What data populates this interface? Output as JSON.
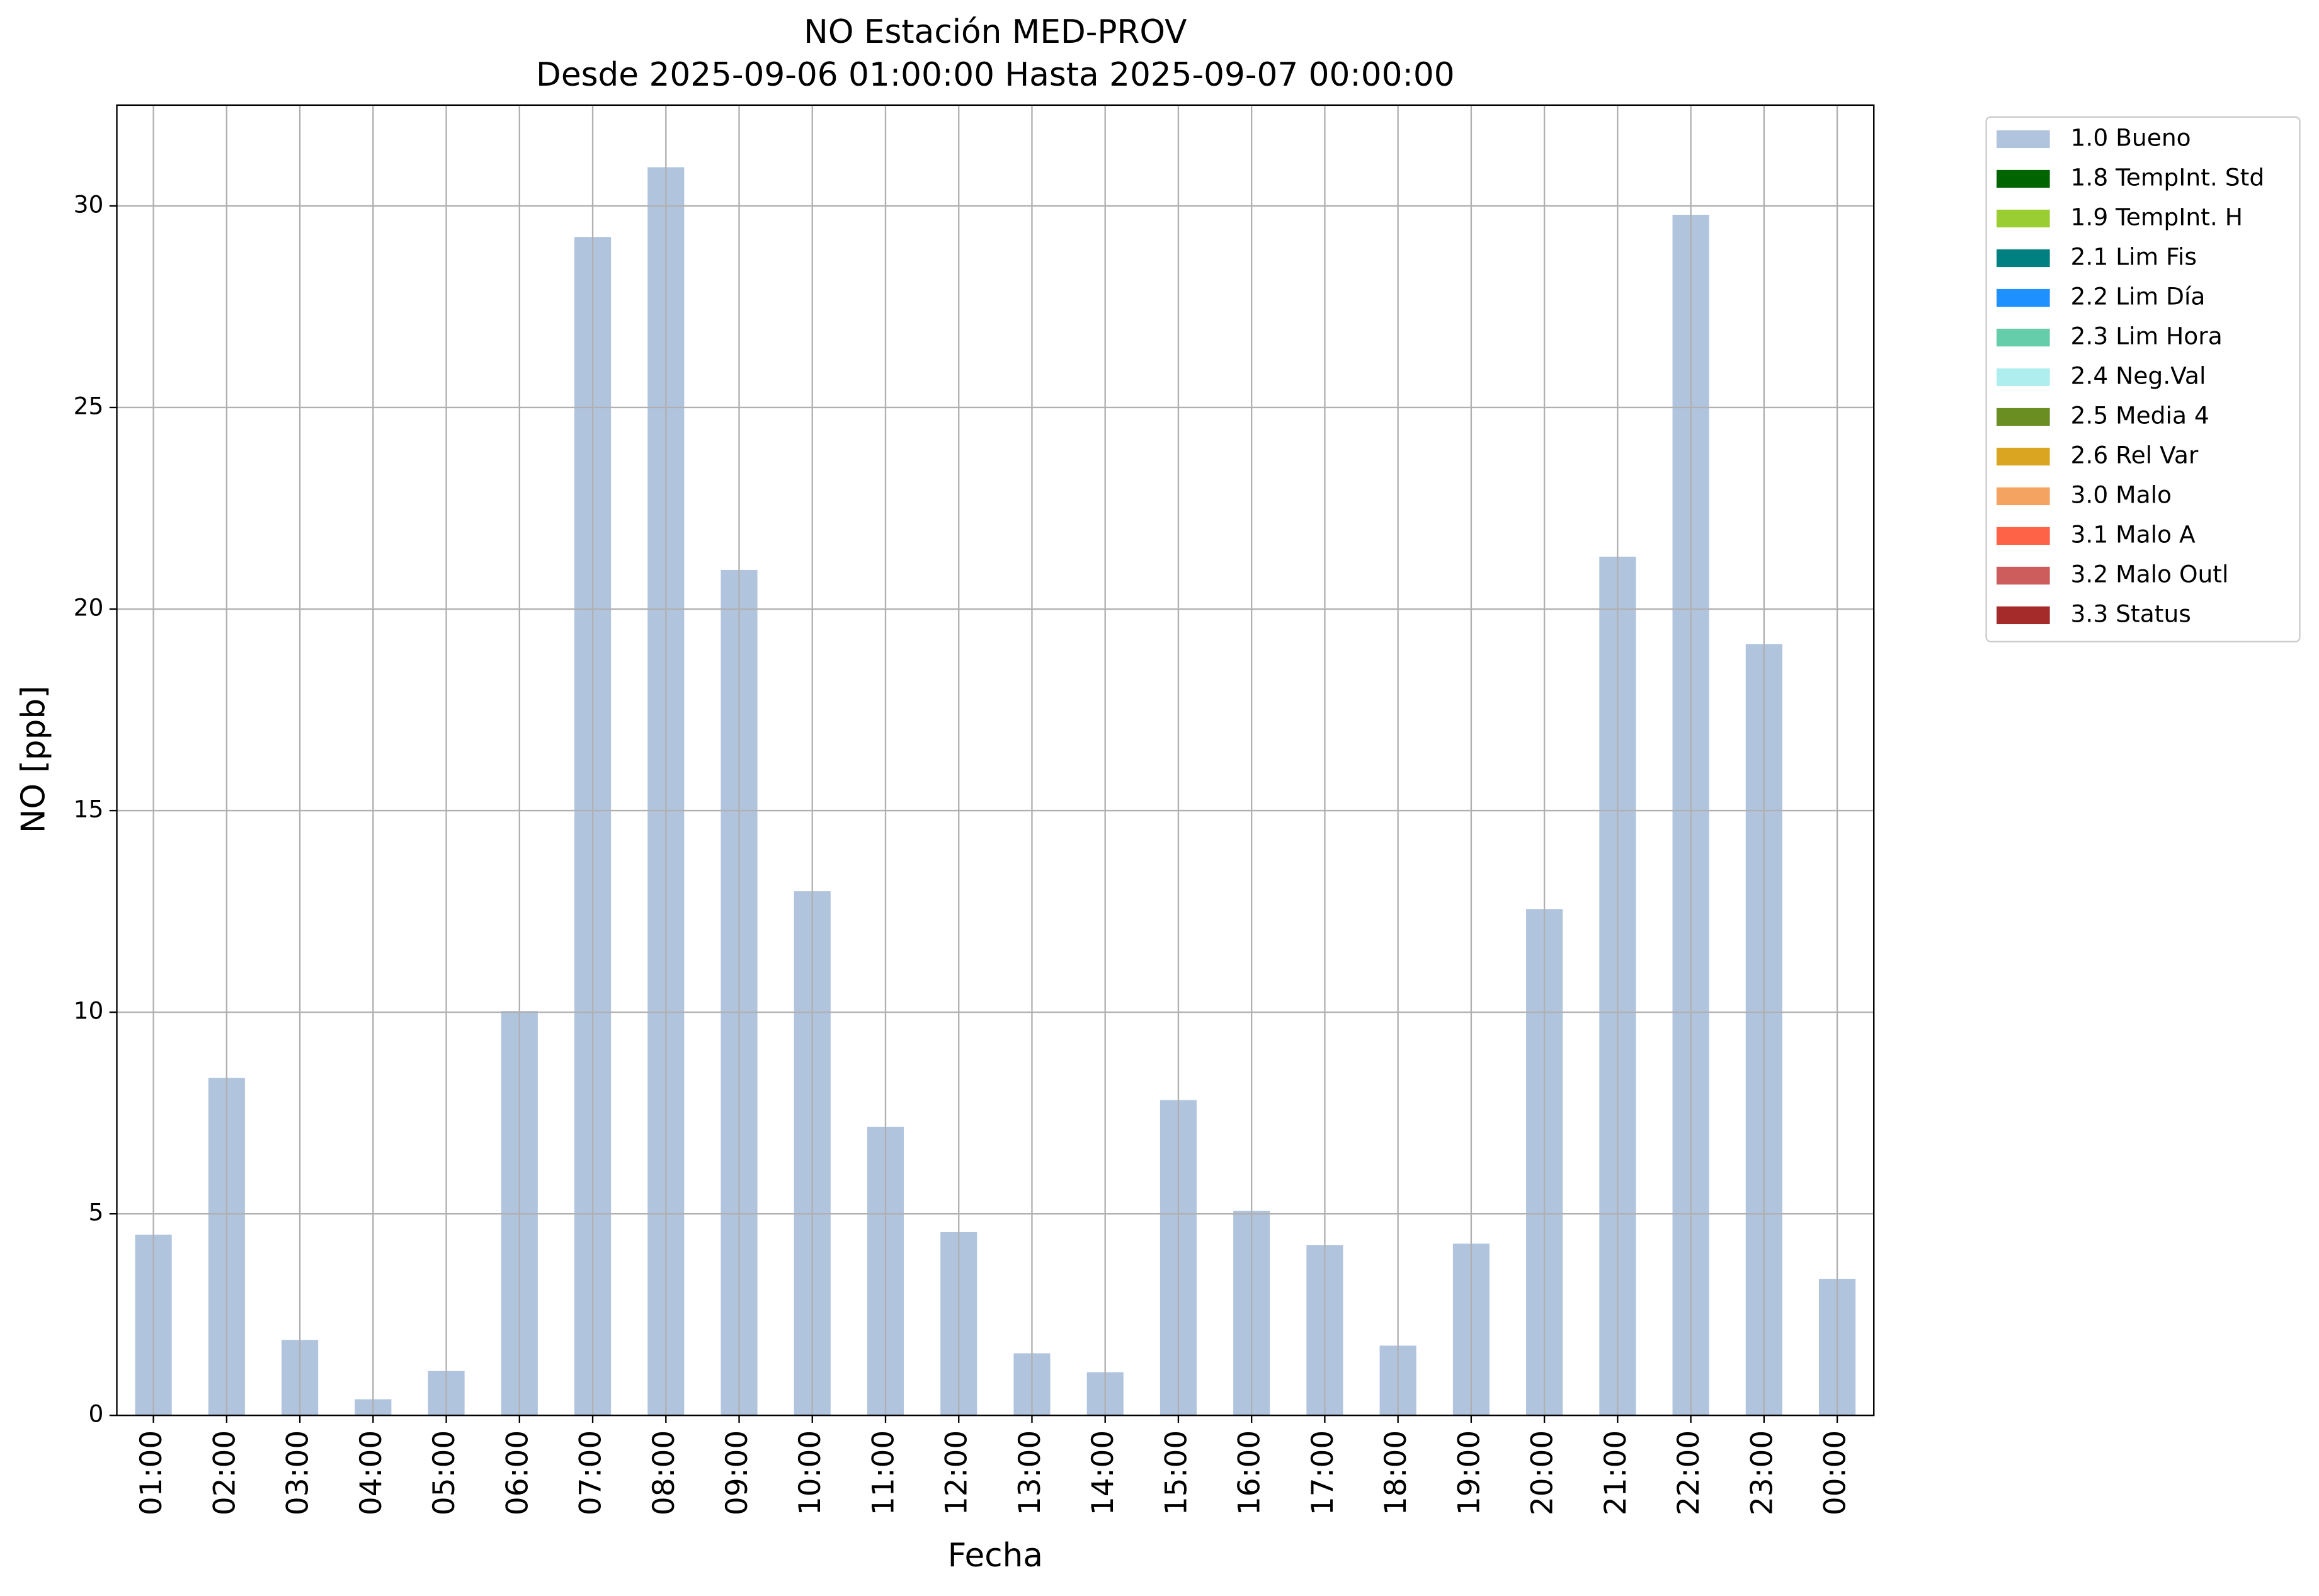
{
  "chart_data": {
    "type": "bar",
    "title": "NO Estación MED-PROV",
    "subtitle": "Desde 2025-09-06 01:00:00 Hasta 2025-09-07 00:00:00",
    "x_label": "Fecha",
    "y_label": "NO [ppb]",
    "categories": [
      "01:00",
      "02:00",
      "03:00",
      "04:00",
      "05:00",
      "06:00",
      "07:00",
      "08:00",
      "09:00",
      "10:00",
      "11:00",
      "12:00",
      "13:00",
      "14:00",
      "15:00",
      "16:00",
      "17:00",
      "18:00",
      "19:00",
      "20:00",
      "21:00",
      "22:00",
      "23:00",
      "00:00"
    ],
    "series": [
      {
        "name": "1.0 Bueno",
        "color": "#b0c4de",
        "values": [
          4.48,
          8.37,
          1.87,
          0.4,
          1.1,
          10.03,
          29.23,
          30.96,
          20.97,
          13.0,
          7.16,
          4.55,
          1.54,
          1.07,
          7.82,
          5.07,
          4.22,
          1.73,
          4.26,
          12.56,
          21.3,
          29.78,
          19.13,
          3.38
        ]
      },
      {
        "name": "1.8 TempInt. Std",
        "color": "#006400"
      },
      {
        "name": "1.9 TempInt. H",
        "color": "#9acd32"
      },
      {
        "name": "2.1 Lim Fis",
        "color": "#008080"
      },
      {
        "name": "2.2 Lim Día",
        "color": "#1e90ff"
      },
      {
        "name": "2.3 Lim Hora",
        "color": "#66cdaa"
      },
      {
        "name": "2.4 Neg.Val",
        "color": "#afeeee"
      },
      {
        "name": "2.5 Media 4",
        "color": "#6b8e23"
      },
      {
        "name": "2.6 Rel Var",
        "color": "#daa520"
      },
      {
        "name": "3.0 Malo",
        "color": "#f4a460"
      },
      {
        "name": "3.1 Malo A",
        "color": "#ff6347"
      },
      {
        "name": "3.2 Malo Outl",
        "color": "#cd5c5c"
      },
      {
        "name": "3.3 Status",
        "color": "#a52a2a"
      }
    ],
    "ylim": [
      0,
      32.5
    ],
    "yticks": [
      0,
      5,
      10,
      15,
      20,
      25,
      30
    ],
    "grid": true,
    "legend": "outside-upper-right"
  }
}
